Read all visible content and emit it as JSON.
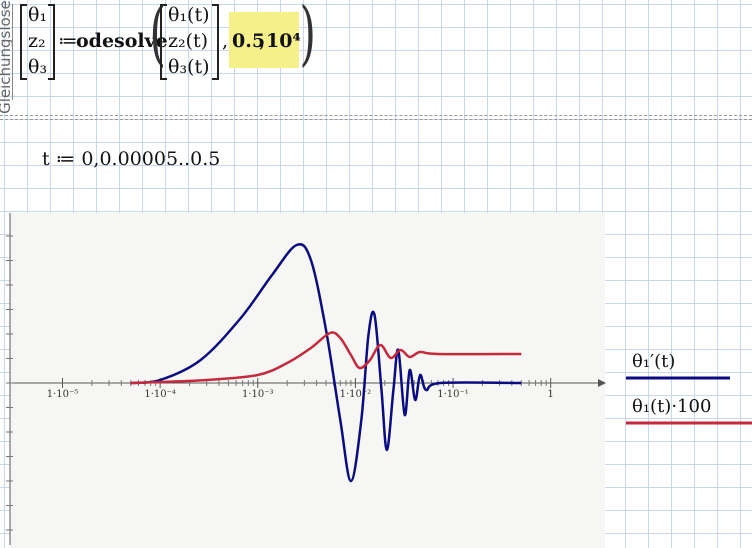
{
  "sidebar_label": "Gleichungslöser",
  "header": {
    "lhs": [
      "θ₁",
      "z₂",
      "θ₃"
    ],
    "assign": "≔",
    "function": "odesolve",
    "args": [
      "θ₁(t)",
      "z₂(t)",
      "θ₃(t)"
    ],
    "end": "0.5",
    "steps": "10⁴"
  },
  "range_definition": "t ≔ 0,0.00005..0.5",
  "chart_data": {
    "type": "line",
    "xscale": "log",
    "xlim": [
      2.9e-06,
      3.6
    ],
    "ylim": [
      -3.24,
      3.4
    ],
    "xticks": [
      {
        "value": 1e-05,
        "label": "1·10⁻⁵"
      },
      {
        "value": 0.0001,
        "label": "1·10⁻⁴"
      },
      {
        "value": 0.001,
        "label": "1·10⁻³"
      },
      {
        "value": 0.01,
        "label": "1·10⁻²"
      },
      {
        "value": 0.1,
        "label": "1·10⁻¹"
      },
      1
    ],
    "series": [
      {
        "name": "θ₁′(t)",
        "color": "#0c0c82",
        "x": [
          5e-05,
          0.0001,
          0.00026,
          0.00067,
          0.0014,
          0.0025,
          0.0035,
          0.005,
          0.007,
          0.009,
          0.0115,
          0.0136,
          0.0157,
          0.0185,
          0.021,
          0.0245,
          0.0275,
          0.032,
          0.036,
          0.041,
          0.046,
          0.053,
          0.074,
          0.5
        ],
        "values": [
          0,
          0.06,
          0.46,
          1.3,
          2.16,
          2.76,
          2.46,
          1.06,
          -0.74,
          -1.96,
          -0.74,
          0.96,
          1.36,
          -0.14,
          -1.34,
          -0.14,
          0.66,
          -0.64,
          0.26,
          -0.34,
          0.16,
          -0.14,
          0,
          0
        ]
      },
      {
        "name": "θ₁(t)·100",
        "color": "#c42a3c",
        "x": [
          5e-05,
          0.0001,
          0.0003,
          0.001,
          0.002,
          0.0035,
          0.0055,
          0.007,
          0.009,
          0.011,
          0.014,
          0.018,
          0.023,
          0.029,
          0.036,
          0.046,
          0.07,
          0.5
        ],
        "values": [
          0,
          0.02,
          0.06,
          0.16,
          0.4,
          0.7,
          1.0,
          0.9,
          0.56,
          0.3,
          0.45,
          0.76,
          0.5,
          0.66,
          0.52,
          0.62,
          0.58,
          0.58
        ]
      }
    ]
  }
}
